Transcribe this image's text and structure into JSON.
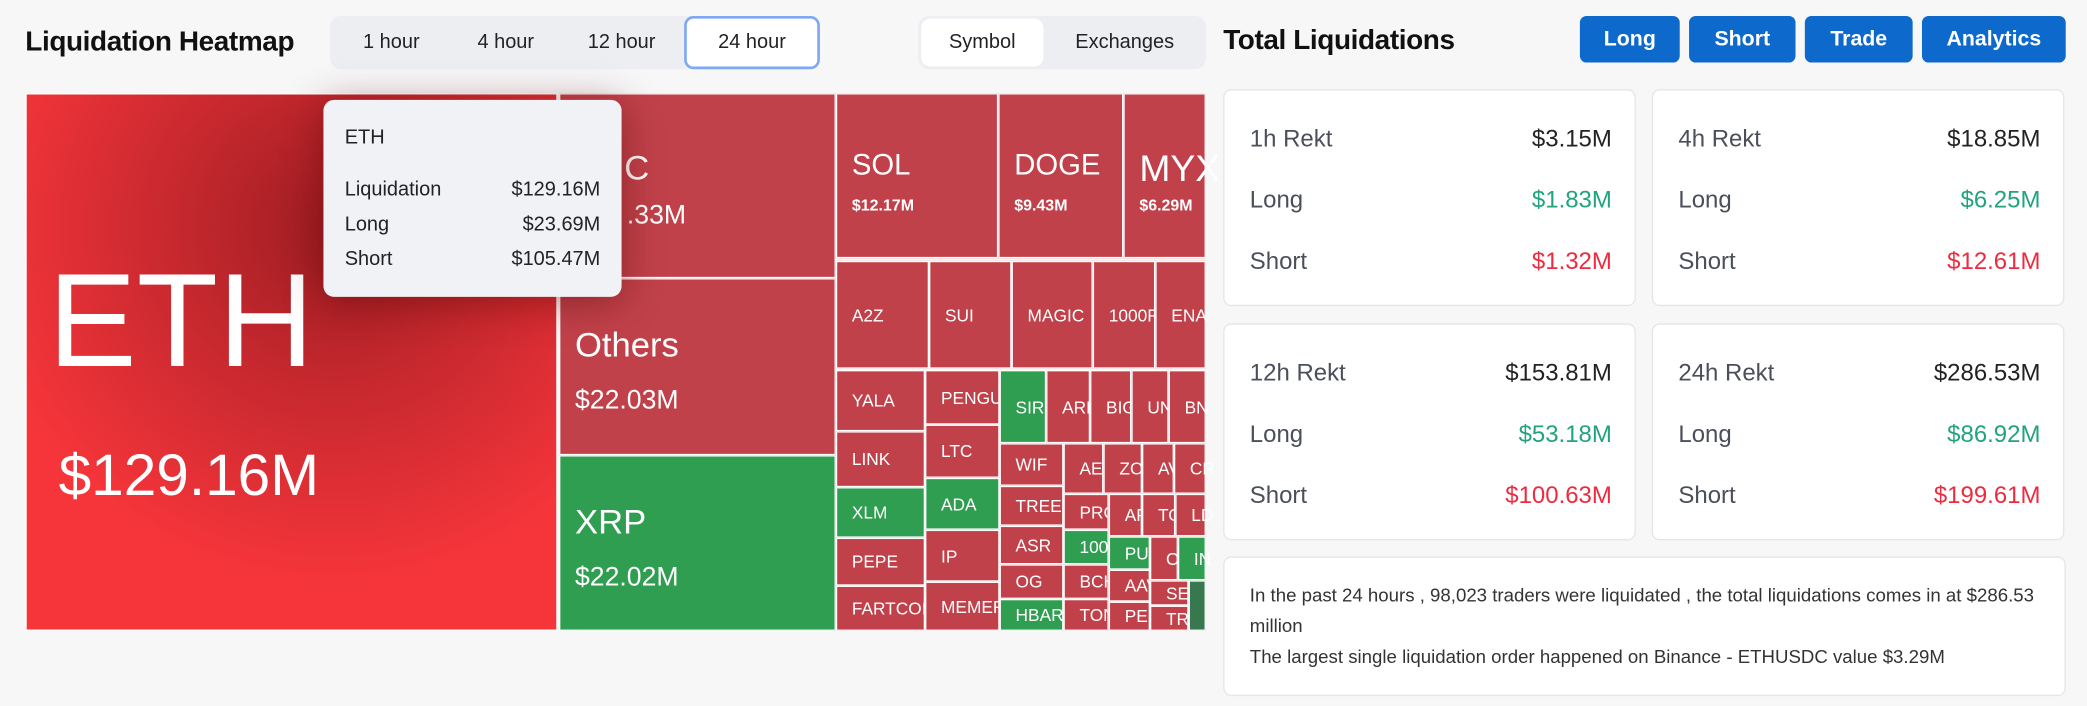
{
  "heatmap": {
    "title": "Liquidation Heatmap",
    "time_tabs": [
      "1 hour",
      "4 hour",
      "12 hour",
      "24 hour"
    ],
    "active_time_tab": "24 hour",
    "view_tabs": [
      "Symbol",
      "Exchanges"
    ],
    "active_view_tab": "Symbol",
    "colors": {
      "short_dominant": "#c1414a",
      "long_dominant": "#2f9e50",
      "selected": "#f5353a"
    },
    "eth": {
      "label": "ETH",
      "value": "$129.16M"
    },
    "cells": [
      {
        "label": "C",
        "value": ".33M",
        "color": "red"
      },
      {
        "label": "Others",
        "value": "$22.03M",
        "color": "red"
      },
      {
        "label": "XRP",
        "value": "$22.02M",
        "color": "green"
      },
      {
        "label": "SOL",
        "value": "$12.17M",
        "color": "red"
      },
      {
        "label": "DOGE",
        "value": "$9.43M",
        "color": "red"
      },
      {
        "label": "MYX",
        "value": "$6.29M",
        "color": "red"
      },
      {
        "label": "A2Z",
        "color": "red"
      },
      {
        "label": "SUI",
        "color": "red"
      },
      {
        "label": "MAGIC",
        "color": "red"
      },
      {
        "label": "1000R",
        "color": "red"
      },
      {
        "label": "ENA",
        "color": "red"
      },
      {
        "label": "YALA",
        "color": "red"
      },
      {
        "label": "LINK",
        "color": "red"
      },
      {
        "label": "XLM",
        "color": "green"
      },
      {
        "label": "PEPE",
        "color": "red"
      },
      {
        "label": "FARTCOIN",
        "color": "red"
      },
      {
        "label": "PENGU",
        "color": "red"
      },
      {
        "label": "LTC",
        "color": "red"
      },
      {
        "label": "ADA",
        "color": "green"
      },
      {
        "label": "IP",
        "color": "red"
      },
      {
        "label": "MEMEF",
        "color": "red"
      },
      {
        "label": "SIRI",
        "color": "green"
      },
      {
        "label": "ARE",
        "color": "red"
      },
      {
        "label": "BIG",
        "color": "red"
      },
      {
        "label": "UN",
        "color": "red"
      },
      {
        "label": "BN",
        "color": "red"
      },
      {
        "label": "WIF",
        "color": "red"
      },
      {
        "label": "TREE",
        "color": "red"
      },
      {
        "label": "ASR",
        "color": "red"
      },
      {
        "label": "OG",
        "color": "red"
      },
      {
        "label": "HBAR",
        "color": "green"
      },
      {
        "label": "AE",
        "color": "red"
      },
      {
        "label": "ZO",
        "color": "red"
      },
      {
        "label": "AV",
        "color": "red"
      },
      {
        "label": "CR",
        "color": "red"
      },
      {
        "label": "PRO",
        "color": "red"
      },
      {
        "label": "100",
        "color": "green"
      },
      {
        "label": "BCH",
        "color": "red"
      },
      {
        "label": "TON",
        "color": "red"
      },
      {
        "label": "AP",
        "color": "red"
      },
      {
        "label": "TO",
        "color": "red"
      },
      {
        "label": "LD",
        "color": "red"
      },
      {
        "label": "PU",
        "color": "green"
      },
      {
        "label": "AAV",
        "color": "red"
      },
      {
        "label": "PEN",
        "color": "red"
      },
      {
        "label": "O",
        "color": "red"
      },
      {
        "label": "IN",
        "color": "green"
      },
      {
        "label": "SE",
        "color": "red"
      },
      {
        "label": "TR",
        "color": "red"
      },
      {
        "label": "",
        "color": "dgreen"
      }
    ],
    "tooltip": {
      "symbol": "ETH",
      "rows": [
        {
          "label": "Liquidation",
          "value": "$129.16M"
        },
        {
          "label": "Long",
          "value": "$23.69M"
        },
        {
          "label": "Short",
          "value": "$105.47M"
        }
      ]
    }
  },
  "totals": {
    "title": "Total Liquidations",
    "buttons": [
      "Long",
      "Short",
      "Trade",
      "Analytics"
    ],
    "accent": "#0d6acc",
    "cards": [
      {
        "title": "1h Rekt",
        "total": "$3.15M",
        "long_label": "Long",
        "long": "$1.83M",
        "short_label": "Short",
        "short": "$1.32M"
      },
      {
        "title": "4h Rekt",
        "total": "$18.85M",
        "long_label": "Long",
        "long": "$6.25M",
        "short_label": "Short",
        "short": "$12.61M"
      },
      {
        "title": "12h Rekt",
        "total": "$153.81M",
        "long_label": "Long",
        "long": "$53.18M",
        "short_label": "Short",
        "short": "$100.63M"
      },
      {
        "title": "24h Rekt",
        "total": "$286.53M",
        "long_label": "Long",
        "long": "$86.92M",
        "short_label": "Short",
        "short": "$199.61M"
      }
    ],
    "summary_line1": "In the past 24 hours , 98,023 traders were liquidated , the total liquidations comes in at $286.53 million",
    "summary_line2": "The largest single liquidation order happened on Binance - ETHUSDC value $3.29M"
  }
}
